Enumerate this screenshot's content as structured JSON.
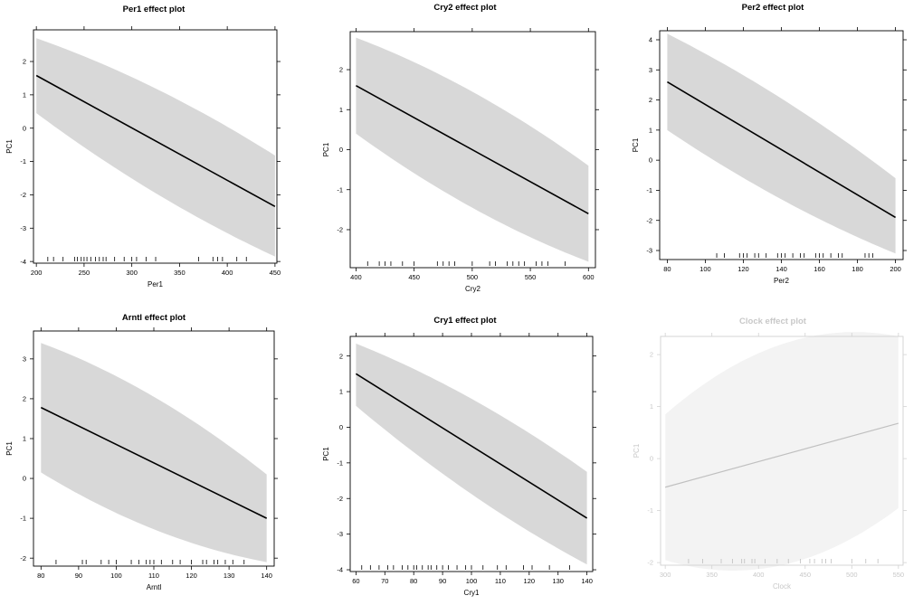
{
  "chart_data": [
    {
      "type": "line",
      "title": "Per1 effect plot",
      "xlabel": "Per1",
      "ylabel": "PC1",
      "xlim": [
        197,
        452
      ],
      "ylim": [
        -4.05,
        2.95
      ],
      "xticks": [
        200,
        250,
        300,
        350,
        400,
        450
      ],
      "yticks": [
        -4,
        -3,
        -2,
        -1,
        0,
        1,
        2
      ],
      "series": [
        {
          "name": "fit",
          "x": [
            200,
            450
          ],
          "y": [
            1.58,
            -2.35
          ]
        }
      ],
      "band": {
        "x": [
          200,
          450
        ],
        "upper": [
          2.7,
          -0.82
        ],
        "lower": [
          0.45,
          -3.85
        ],
        "curvature": 0.25
      },
      "rug": [
        212,
        218,
        228,
        240,
        243,
        247,
        250,
        253,
        257,
        262,
        266,
        270,
        273,
        282,
        292,
        300,
        305,
        315,
        325,
        370,
        385,
        390,
        395,
        410,
        420
      ],
      "faded": false
    },
    {
      "type": "line",
      "title": "Cry2 effect plot",
      "xlabel": "Cry2",
      "ylabel": "PC1",
      "xlim": [
        395,
        606
      ],
      "ylim": [
        -2.95,
        2.95
      ],
      "xticks": [
        400,
        450,
        500,
        550,
        600
      ],
      "yticks": [
        -2,
        -1,
        0,
        1,
        2
      ],
      "series": [
        {
          "name": "fit",
          "x": [
            400,
            600
          ],
          "y": [
            1.6,
            -1.6
          ]
        }
      ],
      "band": {
        "x": [
          400,
          600
        ],
        "upper": [
          2.8,
          -0.4
        ],
        "lower": [
          0.4,
          -2.8
        ],
        "curvature": 0.25
      },
      "rug": [
        410,
        420,
        425,
        430,
        440,
        450,
        470,
        475,
        480,
        485,
        500,
        515,
        520,
        530,
        535,
        540,
        545,
        555,
        560,
        565,
        580
      ],
      "faded": false
    },
    {
      "type": "line",
      "title": "Per2 effect plot",
      "xlabel": "Per2",
      "ylabel": "PC1",
      "xlim": [
        76,
        204
      ],
      "ylim": [
        -3.3,
        4.3
      ],
      "xticks": [
        80,
        100,
        120,
        140,
        160,
        180,
        200
      ],
      "yticks": [
        -3,
        -2,
        -1,
        0,
        1,
        2,
        3,
        4
      ],
      "series": [
        {
          "name": "fit",
          "x": [
            80,
            200
          ],
          "y": [
            2.6,
            -1.9
          ]
        }
      ],
      "band": {
        "x": [
          80,
          200
        ],
        "upper": [
          4.2,
          -0.6
        ],
        "lower": [
          1.0,
          -3.1
        ],
        "curvature": 0.25
      },
      "rug": [
        106,
        110,
        118,
        120,
        122,
        126,
        128,
        132,
        138,
        140,
        142,
        146,
        150,
        152,
        158,
        160,
        162,
        166,
        170,
        172,
        184,
        186,
        188
      ],
      "faded": false
    },
    {
      "type": "line",
      "title": "Arntl effect plot",
      "xlabel": "Arntl",
      "ylabel": "PC1",
      "xlim": [
        78,
        142
      ],
      "ylim": [
        -2.2,
        3.7
      ],
      "xticks": [
        80,
        90,
        100,
        110,
        120,
        130,
        140
      ],
      "yticks": [
        -2,
        -1,
        0,
        1,
        2,
        3
      ],
      "series": [
        {
          "name": "fit",
          "x": [
            80,
            140
          ],
          "y": [
            1.78,
            -1.0
          ]
        }
      ],
      "band": {
        "x": [
          80,
          140
        ],
        "upper": [
          3.4,
          0.1
        ],
        "lower": [
          0.15,
          -2.1
        ],
        "curvature": 0.3
      },
      "rug": [
        84,
        91,
        92,
        96,
        98,
        100,
        104,
        106,
        108,
        109,
        110,
        112,
        115,
        117,
        120,
        123,
        124,
        126,
        127,
        129,
        131,
        134
      ],
      "faded": false
    },
    {
      "type": "line",
      "title": "Cry1 effect plot",
      "xlabel": "Cry1",
      "ylabel": "PC1",
      "xlim": [
        58,
        142
      ],
      "ylim": [
        -4.05,
        2.55
      ],
      "xticks": [
        60,
        70,
        80,
        90,
        100,
        110,
        120,
        130,
        140
      ],
      "yticks": [
        -4,
        -3,
        -2,
        -1,
        0,
        1,
        2
      ],
      "series": [
        {
          "name": "fit",
          "x": [
            60,
            140
          ],
          "y": [
            1.5,
            -2.55
          ]
        }
      ],
      "band": {
        "x": [
          60,
          140
        ],
        "upper": [
          2.35,
          -1.25
        ],
        "lower": [
          0.6,
          -3.85
        ],
        "curvature": 0.25
      },
      "rug": [
        62,
        65,
        68,
        71,
        73,
        76,
        78,
        80,
        81,
        83,
        85,
        86,
        88,
        90,
        92,
        95,
        98,
        100,
        104,
        109,
        112,
        118,
        121,
        127,
        134
      ],
      "faded": false
    },
    {
      "type": "line",
      "title": "Clock effect plot",
      "xlabel": "Clock",
      "ylabel": "PC1",
      "xlim": [
        295,
        555
      ],
      "ylim": [
        -2.05,
        2.35
      ],
      "xticks": [
        300,
        350,
        400,
        450,
        500,
        550
      ],
      "yticks": [
        -2,
        -1,
        0,
        1,
        2
      ],
      "series": [
        {
          "name": "fit",
          "x": [
            300,
            550
          ],
          "y": [
            -0.55,
            0.68
          ]
        }
      ],
      "band": {
        "x": [
          300,
          550
        ],
        "upper": [
          0.85,
          2.35
        ],
        "lower": [
          -1.95,
          -0.95
        ],
        "curvature": 0.6
      },
      "rug": [
        325,
        340,
        360,
        372,
        382,
        385,
        393,
        396,
        407,
        420,
        432,
        445,
        455,
        460,
        468,
        472,
        478,
        500,
        515,
        528
      ],
      "faded": true
    }
  ],
  "colors": {
    "band": "#d8d8d8",
    "fit_line": "#000000",
    "faded_band": "#f3f3f3",
    "faded_line": "#c0c0c0",
    "faded_text": "#c8c8c8"
  }
}
